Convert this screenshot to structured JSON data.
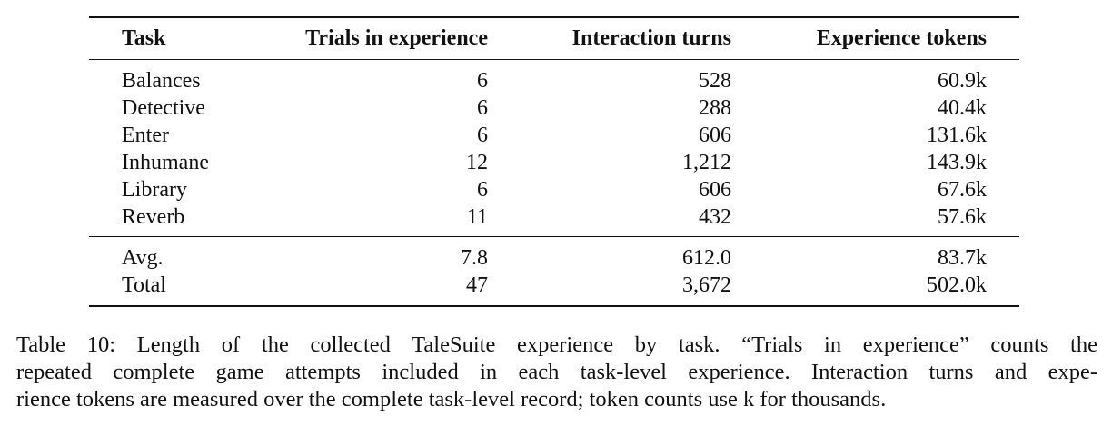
{
  "table": {
    "headers": {
      "task": "Task",
      "trials": "Trials in experience",
      "turns": "Interaction turns",
      "tokens": "Experience tokens"
    },
    "rows": [
      {
        "task": "Balances",
        "trials": "6",
        "turns": "528",
        "tokens": "60.9k"
      },
      {
        "task": "Detective",
        "trials": "6",
        "turns": "288",
        "tokens": "40.4k"
      },
      {
        "task": "Enter",
        "trials": "6",
        "turns": "606",
        "tokens": "131.6k"
      },
      {
        "task": "Inhumane",
        "trials": "12",
        "turns": "1,212",
        "tokens": "143.9k"
      },
      {
        "task": "Library",
        "trials": "6",
        "turns": "606",
        "tokens": "67.6k"
      },
      {
        "task": "Reverb",
        "trials": "11",
        "turns": "432",
        "tokens": "57.6k"
      }
    ],
    "summary": [
      {
        "task": "Avg.",
        "trials": "7.8",
        "turns": "612.0",
        "tokens": "83.7k"
      },
      {
        "task": "Total",
        "trials": "47",
        "turns": "3,672",
        "tokens": "502.0k"
      }
    ]
  },
  "caption": {
    "lines": [
      "Table 10: Length of the collected TaleSuite experience by task. “Trials in experience” counts the",
      "repeated complete game attempts included in each task-level experience. Interaction turns and expe-",
      "rience tokens are measured over the complete task-level record; token counts use k for thousands."
    ]
  }
}
